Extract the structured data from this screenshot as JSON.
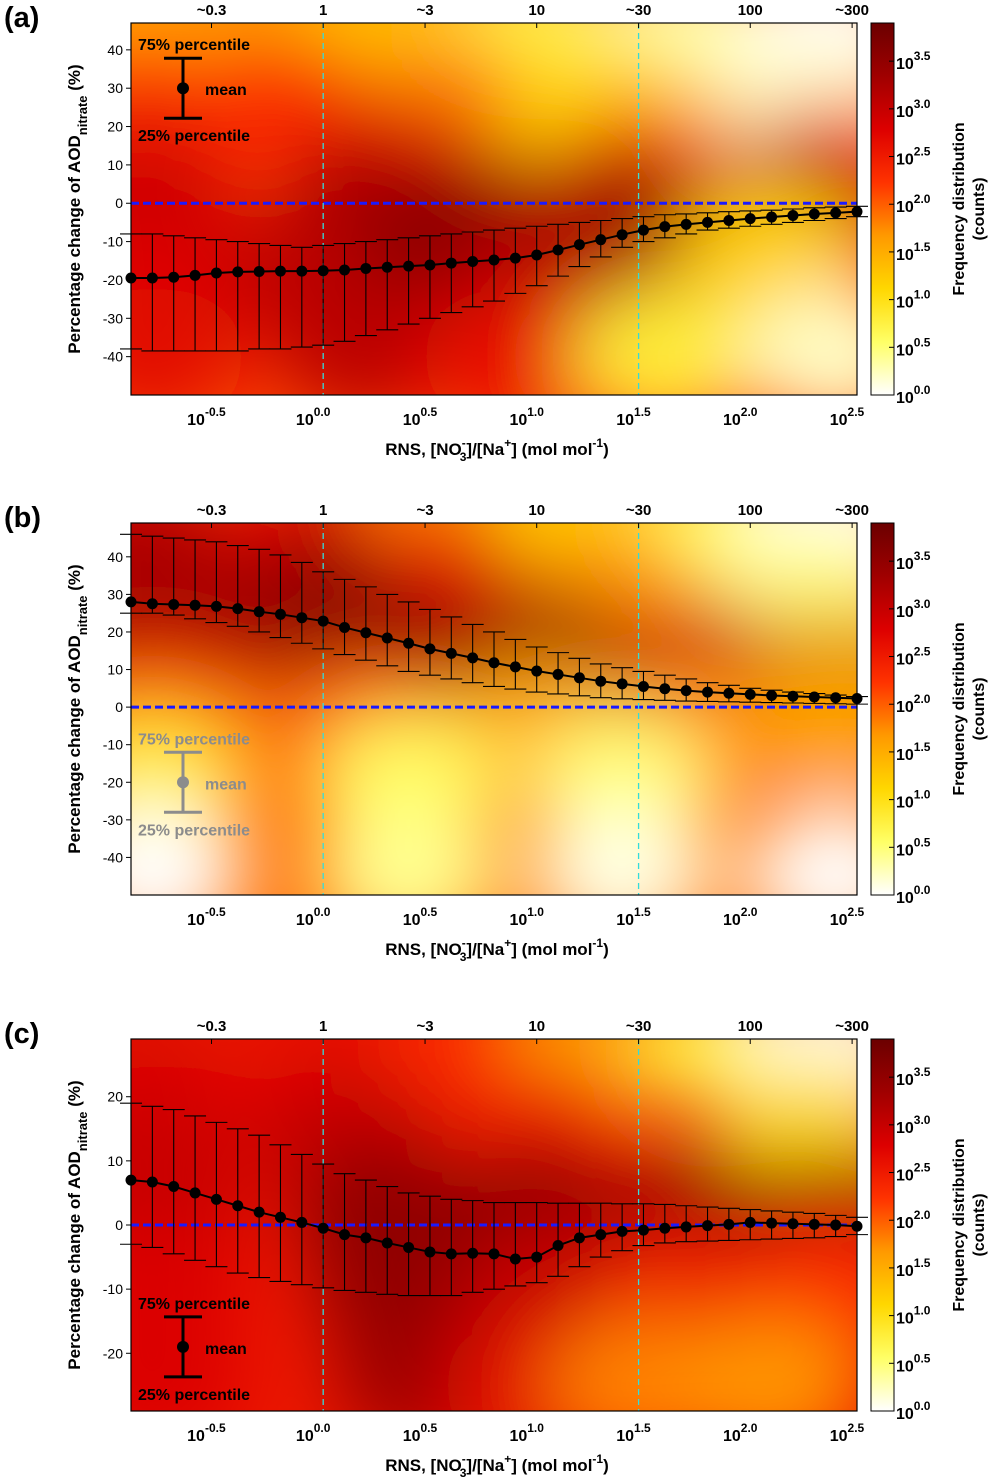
{
  "shared": {
    "ylabel_main": "Percentage change of AOD",
    "ylabel_sub": "nitrate",
    "ylabel_unit": "(%)",
    "xlabel_pre": "RNS, [NO",
    "xlabel_no3_sub": "3",
    "xlabel_no3_sup": "-",
    "xlabel_mid": "]/[Na",
    "xlabel_na_sup": "+",
    "xlabel_post": "] (mol mol",
    "xlabel_unit_sup": "-1",
    "xlabel_close": ")",
    "top_ticks": [
      {
        "x": -0.5229,
        "label": "~0.3"
      },
      {
        "x": 0,
        "label": "1"
      },
      {
        "x": 0.4771,
        "label": "~3"
      },
      {
        "x": 1,
        "label": "10"
      },
      {
        "x": 1.4771,
        "label": "~30"
      },
      {
        "x": 2,
        "label": "100"
      },
      {
        "x": 2.4771,
        "label": "~300"
      }
    ],
    "bottom_ticks": [
      {
        "x": -0.5,
        "base": "10",
        "exp": "-0.5"
      },
      {
        "x": 0,
        "base": "10",
        "exp": "0.0"
      },
      {
        "x": 0.5,
        "base": "10",
        "exp": "0.5"
      },
      {
        "x": 1,
        "base": "10",
        "exp": "1.0"
      },
      {
        "x": 1.5,
        "base": "10",
        "exp": "1.5"
      },
      {
        "x": 2,
        "base": "10",
        "exp": "2.0"
      },
      {
        "x": 2.5,
        "base": "10",
        "exp": "2.5"
      }
    ],
    "xlim": [
      -0.9,
      2.5
    ],
    "vlines": [
      0,
      1.4771
    ],
    "colorbar": {
      "label": "Frequency distribution",
      "unit": "(counts)",
      "ticks": [
        {
          "v": 0.0,
          "base": "10",
          "exp": "0.0"
        },
        {
          "v": 0.5,
          "base": "10",
          "exp": "0.5"
        },
        {
          "v": 1.0,
          "base": "10",
          "exp": "1.0"
        },
        {
          "v": 1.5,
          "base": "10",
          "exp": "1.5"
        },
        {
          "v": 2.0,
          "base": "10",
          "exp": "2.0"
        },
        {
          "v": 2.5,
          "base": "10",
          "exp": "2.5"
        },
        {
          "v": 3.0,
          "base": "10",
          "exp": "3.0"
        },
        {
          "v": 3.5,
          "base": "10",
          "exp": "3.5"
        }
      ],
      "range": [
        0,
        3.9
      ],
      "colors": [
        "#ffffff",
        "#ffff66",
        "#ffd700",
        "#ff9900",
        "#ff3300",
        "#dd0000",
        "#a00000",
        "#6b0000"
      ]
    },
    "legend": {
      "p75": "75% percentile",
      "mean": "mean",
      "p25": "25% percentile"
    },
    "zero_line_color": "#1a1aff",
    "vline_color": "#33dddd"
  },
  "chart_data": [
    {
      "type": "heatmap",
      "panel_label": "(a)",
      "ylim": [
        -50,
        47
      ],
      "yticks": [
        -40,
        -30,
        -20,
        -10,
        0,
        10,
        20,
        30,
        40
      ],
      "legend_color": "#000000",
      "legend_place": "top-left",
      "x": [
        -0.9,
        -0.8,
        -0.7,
        -0.6,
        -0.5,
        -0.4,
        -0.3,
        -0.2,
        -0.1,
        0.0,
        0.1,
        0.2,
        0.3,
        0.4,
        0.5,
        0.6,
        0.7,
        0.8,
        0.9,
        1.0,
        1.1,
        1.2,
        1.3,
        1.4,
        1.5,
        1.6,
        1.7,
        1.8,
        1.9,
        2.0,
        2.1,
        2.2,
        2.3,
        2.4,
        2.5
      ],
      "mean": [
        -19.5,
        -19.5,
        -19.3,
        -18.8,
        -18.2,
        -17.9,
        -17.8,
        -17.7,
        -17.7,
        -17.6,
        -17.4,
        -17.0,
        -16.7,
        -16.4,
        -16.1,
        -15.6,
        -15.2,
        -14.8,
        -14.3,
        -13.5,
        -12.2,
        -10.8,
        -9.5,
        -8.2,
        -7.0,
        -6.1,
        -5.5,
        -5.0,
        -4.5,
        -4.0,
        -3.6,
        -3.2,
        -2.8,
        -2.5,
        -2.2
      ],
      "p75": [
        -8,
        -8,
        -8.5,
        -9,
        -9.5,
        -10,
        -10.5,
        -11,
        -11.5,
        -11,
        -10.5,
        -10,
        -9.5,
        -9,
        -8.5,
        -8,
        -7.5,
        -7,
        -6.5,
        -6,
        -5.5,
        -5,
        -4.5,
        -4,
        -3.5,
        -3,
        -2.8,
        -2.5,
        -2.2,
        -2,
        -1.8,
        -1.5,
        -1.2,
        -1,
        -0.8
      ],
      "p25": [
        -38,
        -38.5,
        -38.5,
        -38.5,
        -38.5,
        -38.5,
        -38,
        -38,
        -37.5,
        -37,
        -36,
        -34.5,
        -33,
        -31.5,
        -30,
        -28.5,
        -27,
        -25.5,
        -23.5,
        -21.5,
        -19,
        -16.5,
        -14,
        -11.5,
        -10,
        -9,
        -8,
        -7,
        -6.5,
        -6,
        -5.5,
        -5,
        -4.5,
        -4,
        -3.5
      ],
      "density": [
        {
          "x": -0.9,
          "y": 47,
          "v": 1.5
        },
        {
          "x": -0.3,
          "y": 47,
          "v": 1.6
        },
        {
          "x": 0.3,
          "y": 47,
          "v": 1.3
        },
        {
          "x": 1.0,
          "y": 45,
          "v": 0.7
        },
        {
          "x": 1.7,
          "y": 45,
          "v": 0.3
        },
        {
          "x": 2.4,
          "y": 45,
          "v": 0.0
        },
        {
          "x": -0.9,
          "y": 25,
          "v": 2.2
        },
        {
          "x": -0.2,
          "y": 25,
          "v": 2.3
        },
        {
          "x": 0.6,
          "y": 25,
          "v": 1.8
        },
        {
          "x": 1.3,
          "y": 25,
          "v": 1.1
        },
        {
          "x": 2.3,
          "y": 25,
          "v": 0.2
        },
        {
          "x": -0.9,
          "y": 8,
          "v": 2.6
        },
        {
          "x": 0.3,
          "y": 8,
          "v": 2.8
        },
        {
          "x": 1.5,
          "y": 8,
          "v": 2.0
        },
        {
          "x": 2.4,
          "y": 8,
          "v": 2.3
        },
        {
          "x": -0.8,
          "y": -5,
          "v": 3.0
        },
        {
          "x": 0.2,
          "y": -6,
          "v": 3.4
        },
        {
          "x": 0.8,
          "y": -6,
          "v": 3.6
        },
        {
          "x": 1.4,
          "y": -5,
          "v": 3.5
        },
        {
          "x": 2.2,
          "y": -2,
          "v": 3.4
        },
        {
          "x": -0.8,
          "y": -20,
          "v": 2.8
        },
        {
          "x": 0.0,
          "y": -20,
          "v": 3.1
        },
        {
          "x": 0.6,
          "y": -18,
          "v": 3.6
        },
        {
          "x": 1.1,
          "y": -15,
          "v": 3.2
        },
        {
          "x": 2.1,
          "y": -12,
          "v": 1.2
        },
        {
          "x": -0.8,
          "y": -40,
          "v": 2.7
        },
        {
          "x": 0.2,
          "y": -38,
          "v": 3.1
        },
        {
          "x": 0.9,
          "y": -40,
          "v": 2.6
        },
        {
          "x": 1.6,
          "y": -40,
          "v": 0.8
        },
        {
          "x": 2.4,
          "y": -40,
          "v": 0.2
        }
      ]
    },
    {
      "type": "heatmap",
      "panel_label": "(b)",
      "ylim": [
        -50,
        49
      ],
      "yticks": [
        -40,
        -30,
        -20,
        -10,
        0,
        10,
        20,
        30,
        40
      ],
      "legend_color": "#8c8c8c",
      "legend_place": "bottom-left",
      "x": [
        -0.9,
        -0.8,
        -0.7,
        -0.6,
        -0.5,
        -0.4,
        -0.3,
        -0.2,
        -0.1,
        0.0,
        0.1,
        0.2,
        0.3,
        0.4,
        0.5,
        0.6,
        0.7,
        0.8,
        0.9,
        1.0,
        1.1,
        1.2,
        1.3,
        1.4,
        1.5,
        1.6,
        1.7,
        1.8,
        1.9,
        2.0,
        2.1,
        2.2,
        2.3,
        2.4,
        2.5
      ],
      "mean": [
        28.0,
        27.5,
        27.3,
        27.1,
        26.8,
        26.2,
        25.4,
        24.7,
        23.8,
        22.9,
        21.2,
        19.8,
        18.4,
        17.0,
        15.5,
        14.3,
        13.1,
        11.8,
        10.7,
        9.6,
        8.7,
        7.8,
        6.9,
        6.2,
        5.5,
        4.9,
        4.4,
        4.0,
        3.7,
        3.4,
        3.1,
        2.9,
        2.7,
        2.5,
        2.3
      ],
      "p75": [
        46,
        45.5,
        45,
        44.5,
        44,
        43,
        42,
        40.5,
        38.5,
        36,
        34,
        32,
        30,
        28,
        26,
        24,
        22,
        20,
        18,
        16,
        14.5,
        13,
        11.5,
        10.5,
        9.5,
        8.5,
        7.5,
        6.5,
        5.8,
        5,
        4.5,
        4,
        3.6,
        3.2,
        2.8
      ],
      "p25": [
        25,
        25,
        24.5,
        23.5,
        22.5,
        21.5,
        20,
        18.5,
        17,
        15.5,
        14,
        12.5,
        11,
        9.5,
        8.5,
        7.5,
        6.5,
        5.5,
        4.8,
        4,
        3.5,
        3,
        2.5,
        2.2,
        2,
        1.8,
        1.6,
        1.5,
        1.4,
        1.3,
        1.2,
        1.1,
        1.0,
        0.9,
        0.8
      ],
      "density": [
        {
          "x": -0.9,
          "y": 48,
          "v": 3.0
        },
        {
          "x": 0.0,
          "y": 48,
          "v": 2.6
        },
        {
          "x": 0.6,
          "y": 48,
          "v": 1.8
        },
        {
          "x": 1.2,
          "y": 48,
          "v": 1.1
        },
        {
          "x": 1.9,
          "y": 48,
          "v": 0.6
        },
        {
          "x": 2.4,
          "y": 48,
          "v": 0.0
        },
        {
          "x": -0.8,
          "y": 30,
          "v": 3.3
        },
        {
          "x": 0.0,
          "y": 30,
          "v": 3.4
        },
        {
          "x": 0.6,
          "y": 30,
          "v": 2.7
        },
        {
          "x": 1.3,
          "y": 30,
          "v": 1.7
        },
        {
          "x": 2.3,
          "y": 30,
          "v": 0.4
        },
        {
          "x": -0.8,
          "y": 15,
          "v": 3.3
        },
        {
          "x": 0.2,
          "y": 15,
          "v": 3.7
        },
        {
          "x": 1.0,
          "y": 12,
          "v": 3.5
        },
        {
          "x": 1.8,
          "y": 10,
          "v": 2.3
        },
        {
          "x": 2.4,
          "y": 12,
          "v": 1.0
        },
        {
          "x": -0.8,
          "y": 3,
          "v": 3.0
        },
        {
          "x": 0.2,
          "y": 4,
          "v": 3.6
        },
        {
          "x": 1.0,
          "y": 3,
          "v": 3.7
        },
        {
          "x": 1.8,
          "y": 3,
          "v": 3.6
        },
        {
          "x": 2.4,
          "y": 2,
          "v": 3.3
        },
        {
          "x": -0.8,
          "y": -5,
          "v": 2.0
        },
        {
          "x": 0.2,
          "y": -5,
          "v": 2.0
        },
        {
          "x": 1.0,
          "y": -5,
          "v": 1.6
        },
        {
          "x": 1.8,
          "y": -5,
          "v": 1.8
        },
        {
          "x": 2.4,
          "y": -4,
          "v": 1.6
        },
        {
          "x": -0.8,
          "y": -20,
          "v": 0.8
        },
        {
          "x": 0.4,
          "y": -20,
          "v": 0.6
        },
        {
          "x": 1.4,
          "y": -20,
          "v": 0.5
        },
        {
          "x": -0.8,
          "y": -45,
          "v": 0.0
        },
        {
          "x": 0.4,
          "y": -45,
          "v": 0.4
        },
        {
          "x": 1.4,
          "y": -45,
          "v": 0.1
        },
        {
          "x": 2.4,
          "y": -45,
          "v": 0.0
        }
      ]
    },
    {
      "type": "heatmap",
      "panel_label": "(c)",
      "ylim": [
        -29,
        29
      ],
      "yticks": [
        -20,
        -10,
        0,
        10,
        20
      ],
      "legend_color": "#000000",
      "legend_place": "bottom-left",
      "x": [
        -0.9,
        -0.8,
        -0.7,
        -0.6,
        -0.5,
        -0.4,
        -0.3,
        -0.2,
        -0.1,
        0.0,
        0.1,
        0.2,
        0.3,
        0.4,
        0.5,
        0.6,
        0.7,
        0.8,
        0.9,
        1.0,
        1.1,
        1.2,
        1.3,
        1.4,
        1.5,
        1.6,
        1.7,
        1.8,
        1.9,
        2.0,
        2.1,
        2.2,
        2.3,
        2.4,
        2.5
      ],
      "mean": [
        7.0,
        6.7,
        6.0,
        5.0,
        4.0,
        3.0,
        2.0,
        1.2,
        0.4,
        -0.5,
        -1.5,
        -2.0,
        -2.8,
        -3.5,
        -4.2,
        -4.5,
        -4.4,
        -4.5,
        -5.3,
        -5.0,
        -3.2,
        -2.0,
        -1.5,
        -1.0,
        -0.8,
        -0.5,
        -0.3,
        -0.1,
        0.1,
        0.4,
        0.3,
        0.2,
        0.1,
        0.0,
        -0.2
      ],
      "p75": [
        19,
        18.5,
        18,
        17,
        16,
        15,
        14,
        12.5,
        11,
        9.5,
        8,
        7,
        6,
        5,
        4.5,
        4,
        3.8,
        3.5,
        3.5,
        3.5,
        3.4,
        3.4,
        3.4,
        3.3,
        3.3,
        3.2,
        3.0,
        2.8,
        2.6,
        2.4,
        2.2,
        2.0,
        1.8,
        1.5,
        1.2
      ],
      "p25": [
        -3,
        -3.5,
        -4.5,
        -5.5,
        -6.5,
        -7.5,
        -8.2,
        -8.8,
        -9.3,
        -9.8,
        -10.2,
        -10.5,
        -10.8,
        -11,
        -11,
        -11,
        -10.5,
        -10,
        -9.5,
        -9,
        -8,
        -6.5,
        -5,
        -4,
        -3.2,
        -2.8,
        -2.6,
        -2.5,
        -2.4,
        -2.3,
        -2.2,
        -2.1,
        -2.0,
        -1.8,
        -1.5
      ],
      "density": [
        {
          "x": -0.9,
          "y": 28,
          "v": 2.7
        },
        {
          "x": 0.0,
          "y": 28,
          "v": 2.6
        },
        {
          "x": 0.7,
          "y": 28,
          "v": 2.3
        },
        {
          "x": 1.3,
          "y": 28,
          "v": 1.6
        },
        {
          "x": 1.9,
          "y": 28,
          "v": 0.8
        },
        {
          "x": 2.4,
          "y": 28,
          "v": 0.1
        },
        {
          "x": -0.8,
          "y": 14,
          "v": 2.9
        },
        {
          "x": 0.1,
          "y": 14,
          "v": 3.0
        },
        {
          "x": 1.0,
          "y": 14,
          "v": 2.5
        },
        {
          "x": 2.3,
          "y": 14,
          "v": 1.1
        },
        {
          "x": -0.8,
          "y": 3,
          "v": 3.0
        },
        {
          "x": 0.3,
          "y": 2,
          "v": 3.5
        },
        {
          "x": 1.0,
          "y": 1,
          "v": 3.6
        },
        {
          "x": 1.8,
          "y": 0,
          "v": 3.6
        },
        {
          "x": 2.4,
          "y": 0,
          "v": 3.4
        },
        {
          "x": -0.8,
          "y": -10,
          "v": 2.8
        },
        {
          "x": 0.4,
          "y": -10,
          "v": 3.5
        },
        {
          "x": 1.1,
          "y": -10,
          "v": 3.0
        },
        {
          "x": 1.7,
          "y": -10,
          "v": 2.5
        },
        {
          "x": 2.4,
          "y": -10,
          "v": 2.3
        },
        {
          "x": -0.8,
          "y": -25,
          "v": 2.8
        },
        {
          "x": 0.5,
          "y": -24,
          "v": 3.4
        },
        {
          "x": 1.0,
          "y": -25,
          "v": 2.7
        },
        {
          "x": 1.5,
          "y": -25,
          "v": 1.8
        },
        {
          "x": 2.1,
          "y": -25,
          "v": 1.7
        }
      ]
    }
  ]
}
